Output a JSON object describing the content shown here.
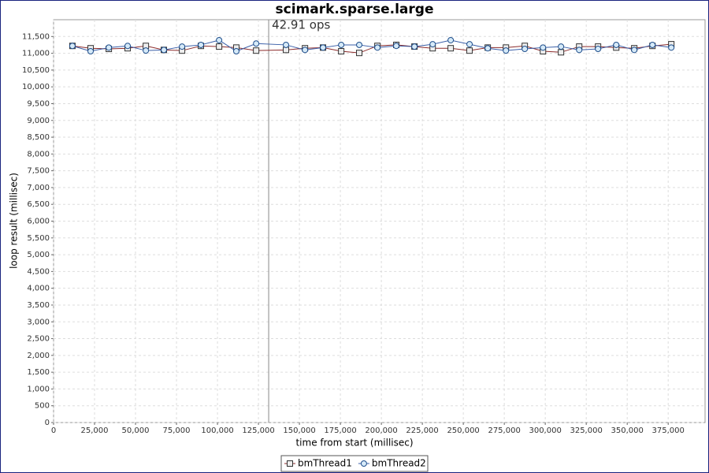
{
  "chart_data": {
    "type": "line",
    "title": "scimark.sparse.large",
    "xlabel": "time from start (millisec)",
    "ylabel": "loop result (millisec)",
    "xlim": [
      0,
      397500
    ],
    "ylim": [
      0,
      12000
    ],
    "grid": true,
    "legend": "bottom",
    "xticks": [
      0,
      {
        "value": 25000,
        "label": "25,000"
      },
      {
        "value": 50000,
        "label": "50,000"
      },
      {
        "value": 75000,
        "label": "75,000"
      },
      {
        "value": 100000,
        "label": "100,000"
      },
      {
        "value": 125000,
        "label": "125,000"
      },
      {
        "value": 150000,
        "label": "150,000"
      },
      {
        "value": 175000,
        "label": "175,000"
      },
      {
        "value": 200000,
        "label": "200,000"
      },
      {
        "value": 225000,
        "label": "225,000"
      },
      {
        "value": 250000,
        "label": "250,000"
      },
      {
        "value": 275000,
        "label": "275,000"
      },
      {
        "value": 300000,
        "label": "300,000"
      },
      {
        "value": 325000,
        "label": "325,000"
      },
      {
        "value": 350000,
        "label": "350,000"
      },
      {
        "value": 375000,
        "label": "375,000"
      }
    ],
    "yticks": [
      0,
      500,
      {
        "value": 1000,
        "label": "1,000"
      },
      {
        "value": 1500,
        "label": "1,500"
      },
      {
        "value": 2000,
        "label": "2,000"
      },
      {
        "value": 2500,
        "label": "2,500"
      },
      {
        "value": 3000,
        "label": "3,000"
      },
      {
        "value": 3500,
        "label": "3,500"
      },
      {
        "value": 4000,
        "label": "4,000"
      },
      {
        "value": 4500,
        "label": "4,500"
      },
      {
        "value": 5000,
        "label": "5,000"
      },
      {
        "value": 5500,
        "label": "5,500"
      },
      {
        "value": 6000,
        "label": "6,000"
      },
      {
        "value": 6500,
        "label": "6,500"
      },
      {
        "value": 7000,
        "label": "7,000"
      },
      {
        "value": 7500,
        "label": "7,500"
      },
      {
        "value": 8000,
        "label": "8,000"
      },
      {
        "value": 8500,
        "label": "8,500"
      },
      {
        "value": 9000,
        "label": "9,000"
      },
      {
        "value": 9500,
        "label": "9,500"
      },
      {
        "value": 10000,
        "label": "10,000"
      },
      {
        "value": 10500,
        "label": "10,500"
      },
      {
        "value": 11000,
        "label": "11,000"
      },
      {
        "value": 11500,
        "label": "11,500"
      }
    ],
    "marker": {
      "x": 131250,
      "label": "42.91 ops"
    },
    "x": [
      11500,
      22600,
      33700,
      45200,
      56300,
      67300,
      78400,
      89900,
      101000,
      111500,
      123600,
      141800,
      153400,
      164400,
      175500,
      186500,
      197600,
      209100,
      220200,
      231300,
      242300,
      253800,
      264900,
      276000,
      287500,
      298600,
      309600,
      320700,
      332200,
      343300,
      354300,
      365400,
      376900
    ],
    "series": [
      {
        "name": "bmThread1",
        "color": "#8b2a2a",
        "marker": "square",
        "values": [
          11220,
          11150,
          11130,
          11150,
          11220,
          11100,
          11080,
          11220,
          11200,
          11170,
          11080,
          11100,
          11150,
          11170,
          11060,
          11010,
          11220,
          11250,
          11200,
          11150,
          11150,
          11080,
          11170,
          11170,
          11220,
          11060,
          11030,
          11200,
          11200,
          11170,
          11150,
          11220,
          11270
        ]
      },
      {
        "name": "bmThread2",
        "color": "#3a5fa8",
        "marker": "circle",
        "values": [
          11220,
          11060,
          11170,
          11220,
          11080,
          11100,
          11200,
          11250,
          11390,
          11060,
          11290,
          11250,
          11100,
          11170,
          11250,
          11250,
          11170,
          11220,
          11200,
          11270,
          11390,
          11270,
          11150,
          11080,
          11130,
          11170,
          11200,
          11100,
          11130,
          11250,
          11100,
          11250,
          11170
        ]
      }
    ]
  }
}
